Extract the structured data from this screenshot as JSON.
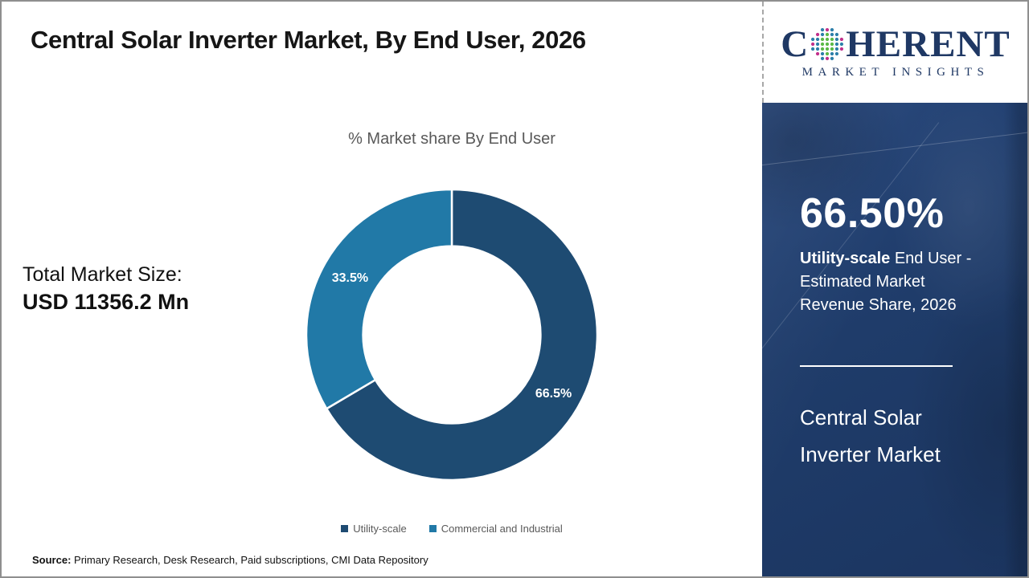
{
  "header": {
    "title": "Central Solar Inverter Market, By End User, 2026"
  },
  "logo": {
    "word_start": "C",
    "word_rest": "HERENT",
    "tagline": "MARKET INSIGHTS",
    "brand_color": "#1f3864",
    "globe_dot_colors": {
      "green": "#5cb947",
      "blue": "#2d7fa9",
      "magenta": "#c2308b"
    }
  },
  "chart_data": {
    "type": "pie",
    "donut": true,
    "hole_ratio": 0.61,
    "title": "% Market share By End User",
    "categories": [
      "Utility-scale",
      "Commercial and Industrial"
    ],
    "values": [
      66.5,
      33.5
    ],
    "labels": [
      "66.5%",
      "33.5%"
    ],
    "colors": [
      "#1e4b72",
      "#2179a7"
    ],
    "start_angle_deg": 0,
    "direction": "clockwise",
    "legend_position": "bottom",
    "label_color": "#ffffff"
  },
  "main": {
    "total_label": "Total Market Size:",
    "total_value": "USD 11356.2 Mn"
  },
  "source": {
    "label": "Source:",
    "text": " Primary Research, Desk Research, Paid subscriptions, CMI Data Repository"
  },
  "sidebar": {
    "stat_value": "66.50%",
    "desc_bold": "Utility-scale",
    "desc_rest": " End User - Estimated Market Revenue Share, 2026",
    "name_line1": "Central Solar",
    "name_line2": "Inverter Market",
    "background_color": "#1f3c6a"
  }
}
